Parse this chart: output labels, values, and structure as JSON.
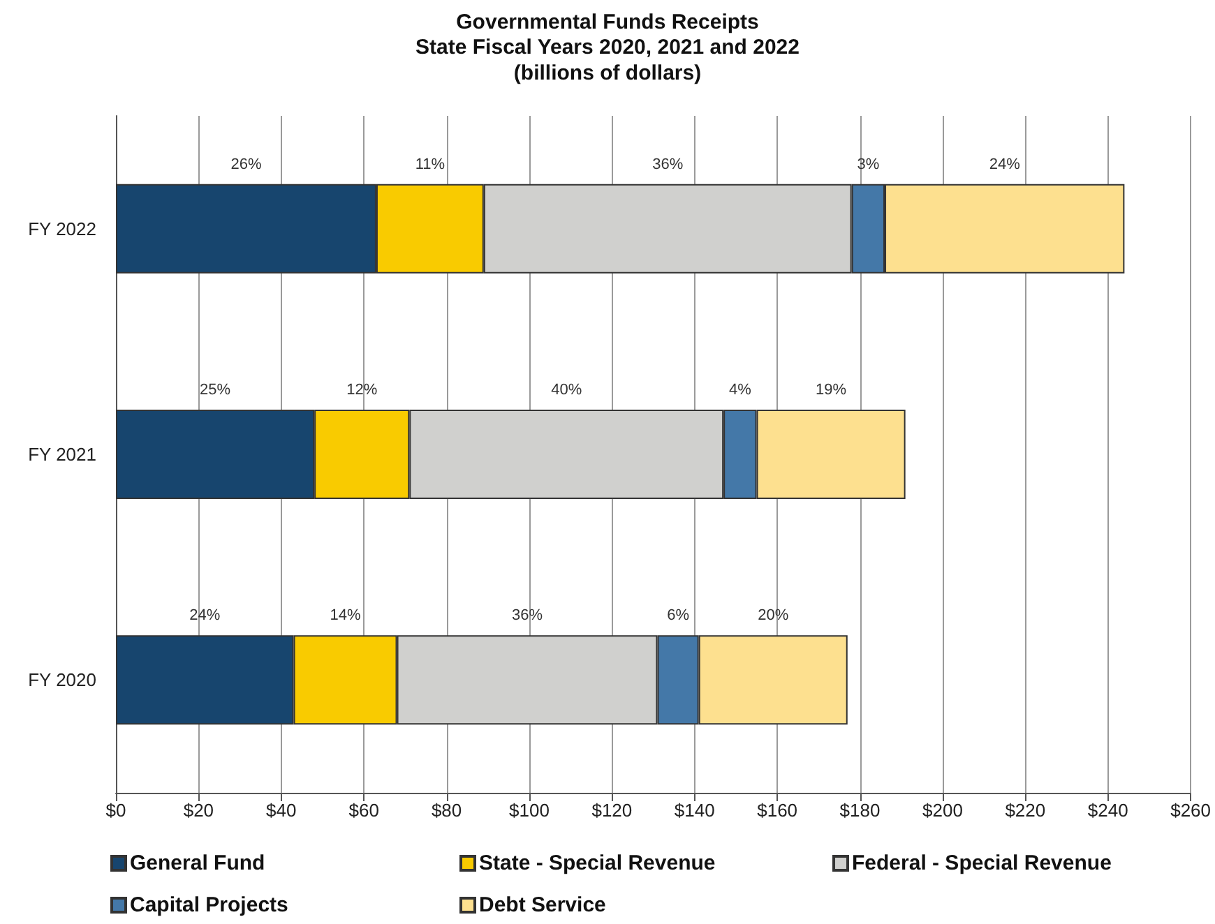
{
  "chart_data": {
    "type": "bar",
    "orientation": "horizontal",
    "stacked": true,
    "title": "Governmental Funds Receipts",
    "subtitle": "State Fiscal Years 2020, 2021 and 2022",
    "annotations": [
      "(billions of dollars)",
      "26%",
      "11%",
      "36%",
      "3%",
      "24%",
      "25%",
      "12%",
      "40%",
      "4%",
      "19%",
      "24%",
      "14%",
      "36%",
      "6%",
      "20%"
    ],
    "categories": [
      "FY 2022",
      "FY 2021",
      "FY 2020"
    ],
    "series": [
      {
        "name": "General Fund",
        "color": "#17456e",
        "values": [
          63,
          48,
          43
        ]
      },
      {
        "name": "State - Special Revenue",
        "color": "#f9cb00",
        "values": [
          26,
          23,
          25
        ]
      },
      {
        "name": "Federal - Special Revenue",
        "color": "#d0d0ce",
        "values": [
          89,
          76,
          63
        ]
      },
      {
        "name": "Capital Projects",
        "color": "#4478a8",
        "values": [
          8,
          8,
          10
        ]
      },
      {
        "name": "Debt Service",
        "color": "#fde08f",
        "values": [
          58,
          36,
          36
        ]
      }
    ],
    "xlim": [
      0,
      260
    ],
    "xticks": [
      {
        "value": 0,
        "label": "$0"
      },
      {
        "value": 20,
        "label": "$20"
      },
      {
        "value": 40,
        "label": "$40"
      },
      {
        "value": 60,
        "label": "$60"
      },
      {
        "value": 80,
        "label": "$80"
      },
      {
        "value": 100,
        "label": "$100"
      },
      {
        "value": 120,
        "label": "$120"
      },
      {
        "value": 140,
        "label": "$140"
      },
      {
        "value": 160,
        "label": "$160"
      },
      {
        "value": 180,
        "label": "$180"
      },
      {
        "value": 200,
        "label": "$200"
      },
      {
        "value": 220,
        "label": "$220"
      },
      {
        "value": 240,
        "label": "$240"
      },
      {
        "value": 260,
        "label": "$260"
      }
    ],
    "grid": "x",
    "legend": "bottom"
  }
}
